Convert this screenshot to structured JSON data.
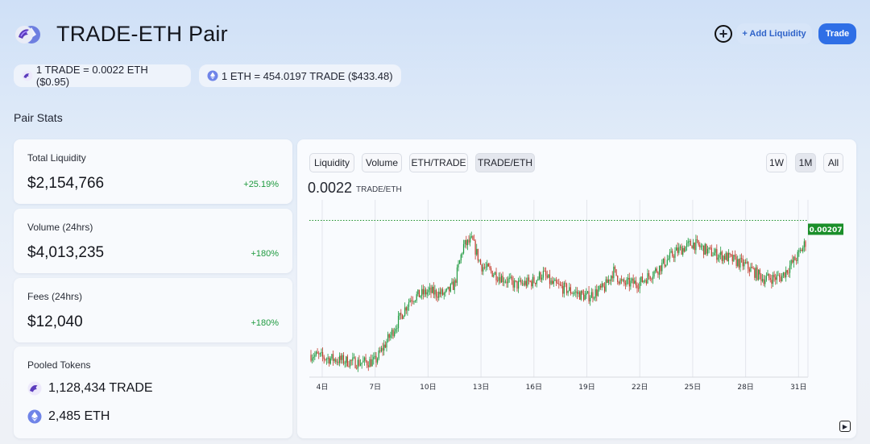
{
  "header": {
    "title": "TRADE-ETH Pair",
    "add_liquidity": "+ Add Liquidity",
    "trade": "Trade",
    "plus_icon": "plus-circle-icon"
  },
  "rates": {
    "trade_to_eth": "1 TRADE = 0.0022 ETH ($0.95)",
    "eth_to_trade": "1 ETH = 454.0197 TRADE ($433.48)"
  },
  "section_title": "Pair Stats",
  "stats": {
    "liquidity": {
      "label": "Total Liquidity",
      "value": "$2,154,766",
      "change": "+25.19%"
    },
    "volume": {
      "label": "Volume (24hrs)",
      "value": "$4,013,235",
      "change": "+180%"
    },
    "fees": {
      "label": "Fees (24hrs)",
      "value": "$12,040",
      "change": "+180%"
    },
    "pooled": {
      "label": "Pooled Tokens",
      "tokens": [
        {
          "amount": "1,128,434 TRADE",
          "icon": "trade-token-icon"
        },
        {
          "amount": "2,485 ETH",
          "icon": "eth-token-icon"
        }
      ]
    }
  },
  "chart": {
    "tabs": [
      "Liquidity",
      "Volume",
      "ETH/TRADE",
      "TRADE/ETH"
    ],
    "active_tab": "TRADE/ETH",
    "ranges": [
      "1W",
      "1M",
      "All"
    ],
    "active_range": "1M",
    "price": "0.0022",
    "price_unit": "TRADE/ETH",
    "current_label": "0.00207",
    "colors": {
      "up": "#1f9a3f",
      "down": "#c23a2b",
      "marker": "#1b8f2a",
      "accent": "#2f6fe6"
    }
  },
  "chart_data": {
    "type": "candlestick",
    "xticks": [
      "4日",
      "7日",
      "10日",
      "13日",
      "16日",
      "19日",
      "22日",
      "25日",
      "28日",
      "31日"
    ],
    "ylim": [
      0.00095,
      0.0023
    ],
    "current_price": 0.00207,
    "close_path": [
      [
        3.5,
        0.00112
      ],
      [
        4,
        0.0011
      ],
      [
        5,
        0.00108
      ],
      [
        6,
        0.00106
      ],
      [
        7,
        0.00107
      ],
      [
        8,
        0.0013
      ],
      [
        9,
        0.00155
      ],
      [
        10,
        0.0016
      ],
      [
        11,
        0.00158
      ],
      [
        11.5,
        0.00166
      ],
      [
        12,
        0.00195
      ],
      [
        12.5,
        0.00199
      ],
      [
        13,
        0.0018
      ],
      [
        14,
        0.00172
      ],
      [
        15,
        0.00165
      ],
      [
        16,
        0.00168
      ],
      [
        16.5,
        0.00174
      ],
      [
        17,
        0.00166
      ],
      [
        18,
        0.00161
      ],
      [
        19,
        0.00156
      ],
      [
        20,
        0.00163
      ],
      [
        20.5,
        0.00176
      ],
      [
        21,
        0.00166
      ],
      [
        22,
        0.00167
      ],
      [
        23,
        0.00177
      ],
      [
        24,
        0.0019
      ],
      [
        25,
        0.00197
      ],
      [
        26,
        0.0019
      ],
      [
        27,
        0.00186
      ],
      [
        28,
        0.0018
      ],
      [
        29,
        0.0017
      ],
      [
        30,
        0.00171
      ],
      [
        31,
        0.00188
      ],
      [
        31.5,
        0.002
      ]
    ]
  }
}
